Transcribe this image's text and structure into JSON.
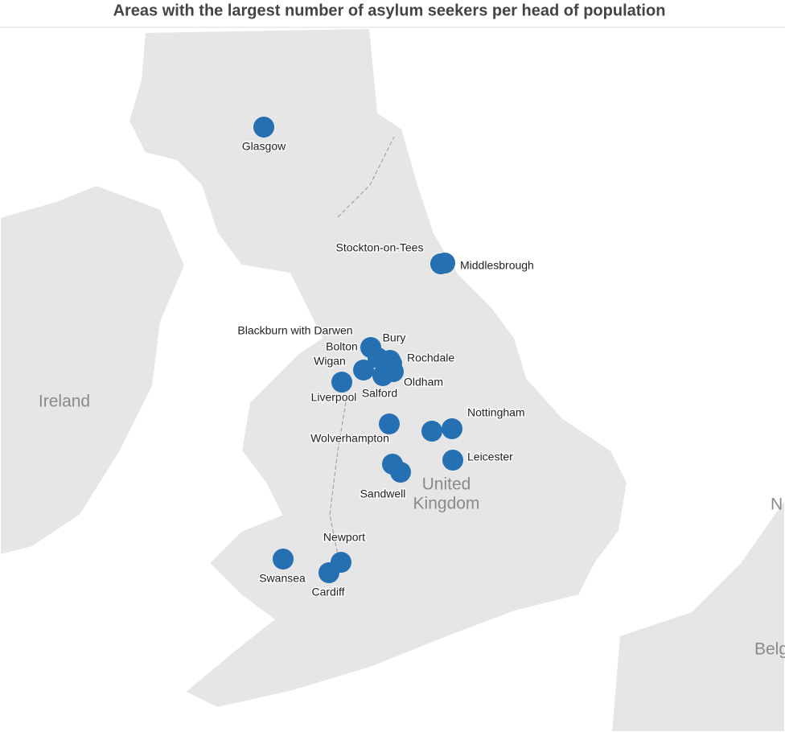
{
  "title": "Areas with the largest number of asylum seekers per head of population",
  "dot_color": "#2470b3",
  "region_labels": {
    "ireland": "Ireland",
    "united_kingdom": [
      "United",
      "Kingdom"
    ],
    "netherlands_partial": "N",
    "belgium_partial": "Belg"
  },
  "places": [
    {
      "label": "Glasgow"
    },
    {
      "label": "Stockton-on-Tees"
    },
    {
      "label": "Middlesbrough"
    },
    {
      "label": "Blackburn with Darwen"
    },
    {
      "label": "Bury"
    },
    {
      "label": "Bolton"
    },
    {
      "label": "Rochdale"
    },
    {
      "label": "Wigan"
    },
    {
      "label": "Oldham"
    },
    {
      "label": "Salford"
    },
    {
      "label": "Liverpool"
    },
    {
      "label": "Wolverhampton"
    },
    {
      "label": null
    },
    {
      "label": "Nottingham"
    },
    {
      "label": "Leicester"
    },
    {
      "label": null
    },
    {
      "label": "Sandwell"
    },
    {
      "label": "Newport"
    },
    {
      "label": "Cardiff"
    },
    {
      "label": "Swansea"
    }
  ]
}
